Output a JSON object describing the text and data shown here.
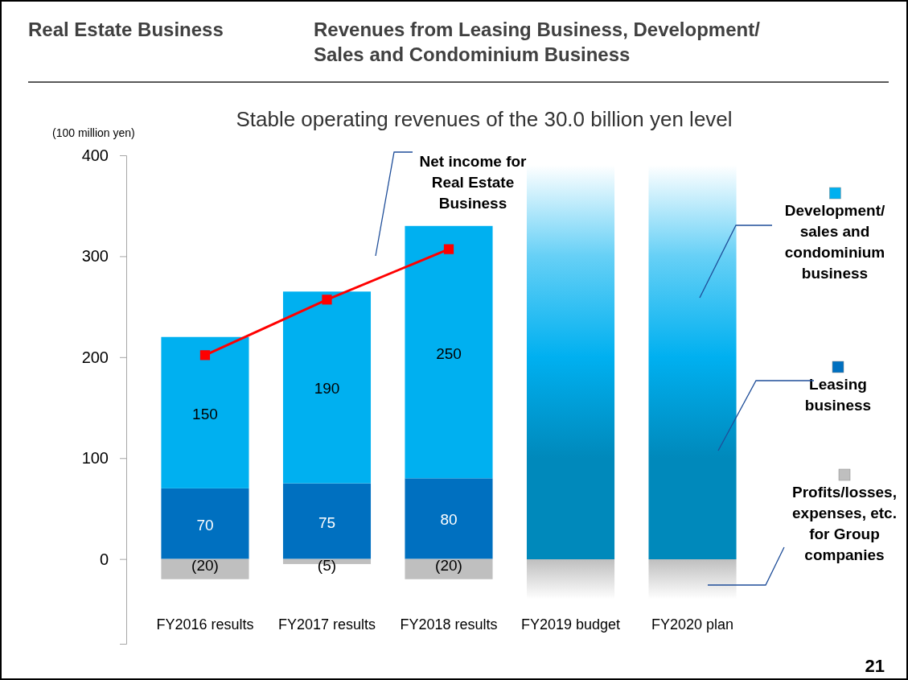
{
  "chart_data": {
    "type": "bar",
    "stacked": true,
    "title": "Revenues from Leasing Business, Development/ Sales and Condominium Business",
    "subtitle": "Stable operating revenues of the 30.0 billion yen level",
    "ylabel": "(100 million yen)",
    "annotations": [
      "Real Estate Business",
      "21"
    ],
    "categories": [
      "FY2016 results",
      "FY2017 results",
      "FY2018 results",
      "FY2019 budget",
      "FY2020 plan"
    ],
    "series": [
      {
        "name": "Leasing business",
        "color": "#0070c0",
        "values": [
          70,
          75,
          80,
          null,
          null
        ],
        "value_labels": [
          "70",
          "75",
          "80",
          null,
          null
        ]
      },
      {
        "name": "Development/ sales and condominium business",
        "color": "#00b0f0",
        "values": [
          150,
          190,
          250,
          null,
          null
        ],
        "value_labels": [
          "150",
          "190",
          "250",
          null,
          null
        ]
      },
      {
        "name": "Profits/losses, expenses, etc. for Group companies",
        "color": "#bfbfbf",
        "values": [
          -20,
          -5,
          -20,
          null,
          null
        ],
        "value_labels": [
          "(20)",
          "(5)",
          "(20)",
          null,
          null
        ]
      },
      {
        "name": "Net income for Real Estate Business",
        "type": "line",
        "color": "#ff0000",
        "marker": "square",
        "values": [
          202,
          257,
          307,
          null,
          null
        ]
      }
    ],
    "ylim": [
      -84,
      400
    ],
    "yticks": [
      0,
      100,
      200,
      300,
      400
    ],
    "bands": [
      {
        "axis": "x",
        "from": "FY2019 budget",
        "to": "FY2019 budget",
        "color": "#00b0f0"
      },
      {
        "axis": "x",
        "from": "FY2020 plan",
        "to": "FY2020 plan",
        "color": "#00b0f0"
      }
    ],
    "grid": false,
    "legend": "right"
  }
}
